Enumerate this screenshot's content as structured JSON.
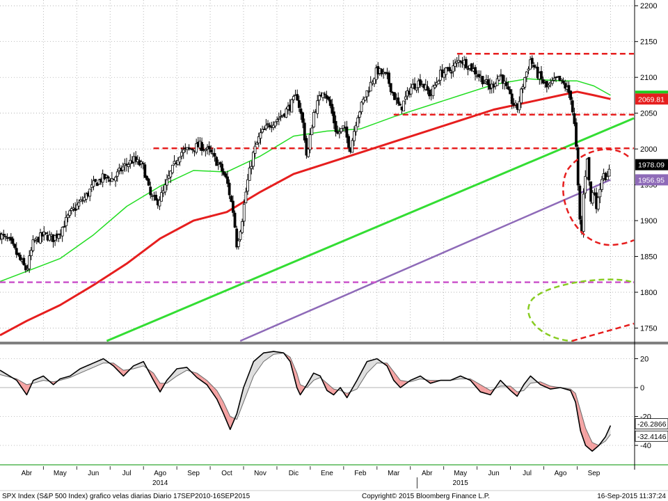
{
  "chart_data": [
    {
      "type": "candlestick",
      "panel": "price",
      "y_ticks": [
        1750,
        1800,
        1850,
        1900,
        1950,
        2000,
        2050,
        2100,
        2150,
        2200
      ],
      "ylim": [
        1732,
        2208
      ],
      "months": [
        {
          "label": "Abr",
          "x": 0
        },
        {
          "label": "May",
          "x": 1
        },
        {
          "label": "Jun",
          "x": 2
        },
        {
          "label": "Jul",
          "x": 3
        },
        {
          "label": "Ago",
          "x": 4
        },
        {
          "label": "Sep",
          "x": 5
        },
        {
          "label": "Oct",
          "x": 6
        },
        {
          "label": "Nov",
          "x": 7
        },
        {
          "label": "Dic",
          "x": 8
        },
        {
          "label": "Ene",
          "x": 9
        },
        {
          "label": "Feb",
          "x": 10
        },
        {
          "label": "Mar",
          "x": 11
        },
        {
          "label": "Abr",
          "x": 12
        },
        {
          "label": "May",
          "x": 13
        },
        {
          "label": "Jun",
          "x": 14
        },
        {
          "label": "Jul",
          "x": 15
        },
        {
          "label": "Ago",
          "x": 16
        },
        {
          "label": "Sep",
          "x": 17
        }
      ],
      "years": [
        {
          "label": "2014",
          "x": 4
        },
        {
          "label": "2015",
          "x": 13
        }
      ],
      "xlim": [
        -0.8,
        18.2
      ],
      "price_path": [
        [
          -0.8,
          1880
        ],
        [
          -0.5,
          1870
        ],
        [
          -0.2,
          1845
        ],
        [
          0.0,
          1830
        ],
        [
          0.2,
          1870
        ],
        [
          0.5,
          1880
        ],
        [
          0.8,
          1875
        ],
        [
          1.0,
          1885
        ],
        [
          1.3,
          1910
        ],
        [
          1.6,
          1925
        ],
        [
          1.8,
          1935
        ],
        [
          2.0,
          1950
        ],
        [
          2.3,
          1960
        ],
        [
          2.6,
          1958
        ],
        [
          2.9,
          1975
        ],
        [
          3.2,
          1985
        ],
        [
          3.5,
          1975
        ],
        [
          3.7,
          1935
        ],
        [
          3.9,
          1925
        ],
        [
          4.1,
          1940
        ],
        [
          4.3,
          1965
        ],
        [
          4.6,
          1995
        ],
        [
          4.9,
          2000
        ],
        [
          5.2,
          2005
        ],
        [
          5.5,
          1995
        ],
        [
          5.8,
          1975
        ],
        [
          6.0,
          1955
        ],
        [
          6.2,
          1910
        ],
        [
          6.3,
          1865
        ],
        [
          6.45,
          1900
        ],
        [
          6.6,
          1950
        ],
        [
          6.8,
          1995
        ],
        [
          7.0,
          2020
        ],
        [
          7.3,
          2035
        ],
        [
          7.6,
          2045
        ],
        [
          7.9,
          2060
        ],
        [
          8.1,
          2075
        ],
        [
          8.3,
          2030
        ],
        [
          8.4,
          1985
        ],
        [
          8.6,
          2050
        ],
        [
          8.9,
          2085
        ],
        [
          9.1,
          2060
        ],
        [
          9.3,
          2020
        ],
        [
          9.5,
          2030
        ],
        [
          9.7,
          2000
        ],
        [
          9.9,
          2045
        ],
        [
          10.2,
          2080
        ],
        [
          10.5,
          2110
        ],
        [
          10.8,
          2100
        ],
        [
          11.0,
          2075
        ],
        [
          11.2,
          2055
        ],
        [
          11.5,
          2085
        ],
        [
          11.8,
          2095
        ],
        [
          12.1,
          2075
        ],
        [
          12.4,
          2105
        ],
        [
          12.7,
          2110
        ],
        [
          13.0,
          2125
        ],
        [
          13.3,
          2115
        ],
        [
          13.6,
          2100
        ],
        [
          13.9,
          2085
        ],
        [
          14.2,
          2105
        ],
        [
          14.5,
          2070
        ],
        [
          14.7,
          2055
        ],
        [
          14.9,
          2095
        ],
        [
          15.1,
          2125
        ],
        [
          15.3,
          2105
        ],
        [
          15.6,
          2085
        ],
        [
          15.9,
          2098
        ],
        [
          16.1,
          2090
        ],
        [
          16.3,
          2075
        ],
        [
          16.45,
          2020
        ],
        [
          16.55,
          1920
        ],
        [
          16.62,
          1872
        ],
        [
          16.7,
          1945
        ],
        [
          16.8,
          1990
        ],
        [
          16.9,
          1925
        ],
        [
          17.0,
          1945
        ],
        [
          17.1,
          1915
        ],
        [
          17.2,
          1955
        ],
        [
          17.3,
          1970
        ],
        [
          17.4,
          1955
        ],
        [
          17.5,
          1978
        ]
      ],
      "series": [
        {
          "name": "",
          "color": "#22dd22",
          "width": 1.5,
          "points": [
            [
              -0.8,
              1815
            ],
            [
              1.0,
              1847
            ],
            [
              2.0,
              1880
            ],
            [
              3.0,
              1920
            ],
            [
              4.0,
              1948
            ],
            [
              5.0,
              1970
            ],
            [
              6.0,
              1968
            ],
            [
              7.0,
              1990
            ],
            [
              8.0,
              2018
            ],
            [
              9.0,
              2025
            ],
            [
              10.0,
              2028
            ],
            [
              11.0,
              2045
            ],
            [
              12.0,
              2060
            ],
            [
              13.0,
              2075
            ],
            [
              14.0,
              2090
            ],
            [
              15.0,
              2098
            ],
            [
              16.0,
              2095
            ],
            [
              16.5,
              2095
            ],
            [
              17.0,
              2088
            ],
            [
              17.5,
              2075
            ]
          ]
        },
        {
          "name": "",
          "color": "#e61e1e",
          "width": 3,
          "points": [
            [
              -0.8,
              1740
            ],
            [
              0.0,
              1760
            ],
            [
              1.0,
              1782
            ],
            [
              2.0,
              1810
            ],
            [
              3.0,
              1840
            ],
            [
              4.0,
              1875
            ],
            [
              5.0,
              1900
            ],
            [
              6.0,
              1912
            ],
            [
              7.0,
              1940
            ],
            [
              8.0,
              1965
            ],
            [
              9.0,
              1980
            ],
            [
              10.0,
              1995
            ],
            [
              11.0,
              2010
            ],
            [
              12.0,
              2025
            ],
            [
              13.0,
              2040
            ],
            [
              14.0,
              2055
            ],
            [
              15.0,
              2065
            ],
            [
              16.0,
              2075
            ],
            [
              16.5,
              2080
            ],
            [
              17.0,
              2075
            ],
            [
              17.5,
              2069.81
            ]
          ]
        },
        {
          "name": "",
          "color": "#33dd33",
          "width": 3,
          "points": [
            [
              2.4,
              1732
            ],
            [
              18.2,
              2043
            ]
          ]
        },
        {
          "name": "",
          "color": "#8e6ab8",
          "width": 2.5,
          "points": [
            [
              6.4,
              1732
            ],
            [
              17.5,
              1956.95
            ]
          ]
        }
      ],
      "levels": [
        {
          "color": "#e61e1e",
          "y": 2133,
          "x0": 12.9,
          "x1": 18.2
        },
        {
          "color": "#e61e1e",
          "y": 2048,
          "x0": 11.0,
          "x1": 18.2
        },
        {
          "color": "#e61e1e",
          "y": 2001,
          "x0": 3.8,
          "x1": 18.2
        },
        {
          "color": "#cc55cc",
          "y": 1814,
          "x0": -0.8,
          "x1": 18.2
        }
      ],
      "price_tags": [
        {
          "label": "2069.81",
          "value": 2069.81,
          "bg": "#e61e1e",
          "fg": "#ffffff"
        },
        {
          "label": "1978.09",
          "value": 1978.09,
          "bg": "#000000",
          "fg": "#ffffff"
        },
        {
          "label": "1956.95",
          "value": 1956.95,
          "bg": "#8e6ab8",
          "fg": "#ffffff"
        }
      ]
    },
    {
      "type": "oscillator",
      "panel": "lower",
      "y_ticks": [
        20,
        0,
        -20,
        -40
      ],
      "ylim": [
        -52,
        26
      ],
      "fast_points": [
        [
          -0.8,
          12
        ],
        [
          -0.3,
          5
        ],
        [
          0.0,
          -5
        ],
        [
          0.2,
          5
        ],
        [
          0.5,
          8
        ],
        [
          0.8,
          2
        ],
        [
          1.0,
          6
        ],
        [
          1.3,
          8
        ],
        [
          1.6,
          13
        ],
        [
          2.0,
          17
        ],
        [
          2.3,
          20
        ],
        [
          2.6,
          15
        ],
        [
          2.9,
          8
        ],
        [
          3.2,
          15
        ],
        [
          3.5,
          18
        ],
        [
          3.8,
          5
        ],
        [
          4.0,
          -3
        ],
        [
          4.2,
          5
        ],
        [
          4.5,
          13
        ],
        [
          4.8,
          14
        ],
        [
          5.1,
          7
        ],
        [
          5.4,
          2
        ],
        [
          5.7,
          -8
        ],
        [
          5.9,
          -18
        ],
        [
          6.1,
          -29
        ],
        [
          6.3,
          -18
        ],
        [
          6.5,
          0
        ],
        [
          6.8,
          18
        ],
        [
          7.1,
          24
        ],
        [
          7.4,
          25
        ],
        [
          7.7,
          24
        ],
        [
          7.9,
          18
        ],
        [
          8.1,
          0
        ],
        [
          8.2,
          -5
        ],
        [
          8.4,
          2
        ],
        [
          8.6,
          10
        ],
        [
          8.8,
          8
        ],
        [
          9.0,
          -2
        ],
        [
          9.2,
          -5
        ],
        [
          9.4,
          0
        ],
        [
          9.6,
          -7
        ],
        [
          9.9,
          5
        ],
        [
          10.2,
          18
        ],
        [
          10.5,
          20
        ],
        [
          10.8,
          15
        ],
        [
          11.0,
          5
        ],
        [
          11.2,
          0
        ],
        [
          11.5,
          5
        ],
        [
          11.8,
          8
        ],
        [
          12.1,
          3
        ],
        [
          12.4,
          5
        ],
        [
          12.7,
          5
        ],
        [
          13.0,
          8
        ],
        [
          13.3,
          5
        ],
        [
          13.6,
          -3
        ],
        [
          13.9,
          -5
        ],
        [
          14.2,
          5
        ],
        [
          14.5,
          -2
        ],
        [
          14.7,
          -6
        ],
        [
          14.9,
          2
        ],
        [
          15.1,
          8
        ],
        [
          15.4,
          2
        ],
        [
          15.7,
          -1
        ],
        [
          16.0,
          0
        ],
        [
          16.3,
          -2
        ],
        [
          16.45,
          -10
        ],
        [
          16.6,
          -30
        ],
        [
          16.75,
          -40
        ],
        [
          16.95,
          -44
        ],
        [
          17.15,
          -40
        ],
        [
          17.35,
          -34
        ],
        [
          17.5,
          -26.2866
        ]
      ],
      "slow_points": [
        [
          -0.8,
          9
        ],
        [
          -0.3,
          6
        ],
        [
          0.0,
          2
        ],
        [
          0.2,
          3
        ],
        [
          0.5,
          5
        ],
        [
          0.8,
          4
        ],
        [
          1.0,
          5
        ],
        [
          1.3,
          7
        ],
        [
          1.6,
          10
        ],
        [
          2.0,
          14
        ],
        [
          2.3,
          17
        ],
        [
          2.6,
          17
        ],
        [
          2.9,
          12
        ],
        [
          3.2,
          13
        ],
        [
          3.5,
          15
        ],
        [
          3.8,
          10
        ],
        [
          4.0,
          3
        ],
        [
          4.2,
          3
        ],
        [
          4.5,
          8
        ],
        [
          4.8,
          12
        ],
        [
          5.1,
          10
        ],
        [
          5.4,
          5
        ],
        [
          5.7,
          -2
        ],
        [
          5.9,
          -10
        ],
        [
          6.1,
          -20
        ],
        [
          6.3,
          -22
        ],
        [
          6.5,
          -10
        ],
        [
          6.8,
          8
        ],
        [
          7.1,
          18
        ],
        [
          7.4,
          23
        ],
        [
          7.7,
          24
        ],
        [
          7.9,
          21
        ],
        [
          8.1,
          10
        ],
        [
          8.2,
          2
        ],
        [
          8.4,
          0
        ],
        [
          8.6,
          5
        ],
        [
          8.8,
          7
        ],
        [
          9.0,
          3
        ],
        [
          9.2,
          -1
        ],
        [
          9.4,
          -2
        ],
        [
          9.6,
          -4
        ],
        [
          9.9,
          -1
        ],
        [
          10.2,
          10
        ],
        [
          10.5,
          17
        ],
        [
          10.8,
          17
        ],
        [
          11.0,
          11
        ],
        [
          11.2,
          5
        ],
        [
          11.5,
          4
        ],
        [
          11.8,
          6
        ],
        [
          12.1,
          5
        ],
        [
          12.4,
          5
        ],
        [
          12.7,
          5
        ],
        [
          13.0,
          6
        ],
        [
          13.3,
          6
        ],
        [
          13.6,
          2
        ],
        [
          13.9,
          -2
        ],
        [
          14.2,
          1
        ],
        [
          14.5,
          1
        ],
        [
          14.7,
          -3
        ],
        [
          14.9,
          -2
        ],
        [
          15.1,
          3
        ],
        [
          15.4,
          4
        ],
        [
          15.7,
          1
        ],
        [
          16.0,
          0
        ],
        [
          16.3,
          -1
        ],
        [
          16.45,
          -4
        ],
        [
          16.6,
          -16
        ],
        [
          16.75,
          -28
        ],
        [
          16.95,
          -38
        ],
        [
          17.15,
          -40
        ],
        [
          17.35,
          -37
        ],
        [
          17.5,
          -32.4146
        ]
      ],
      "value_tags": [
        {
          "label": "-26.2866",
          "value": -26.2866
        },
        {
          "label": "-32.4146",
          "value": -32.4146
        }
      ]
    }
  ],
  "footer": {
    "left": "SPX Index (S&P 500 Index) grafico velas diarias  Diario 17SEP2010-16SEP2015",
    "center": "Copyright© 2015 Bloomberg Finance L.P.",
    "right": "16-Sep-2015 11:37:24"
  },
  "colors": {
    "candle": "#000000",
    "fill_bull": "#dedede",
    "fill_bear": "#f4a0a0",
    "grid": "#9a9a9a",
    "separator": "#808080"
  }
}
